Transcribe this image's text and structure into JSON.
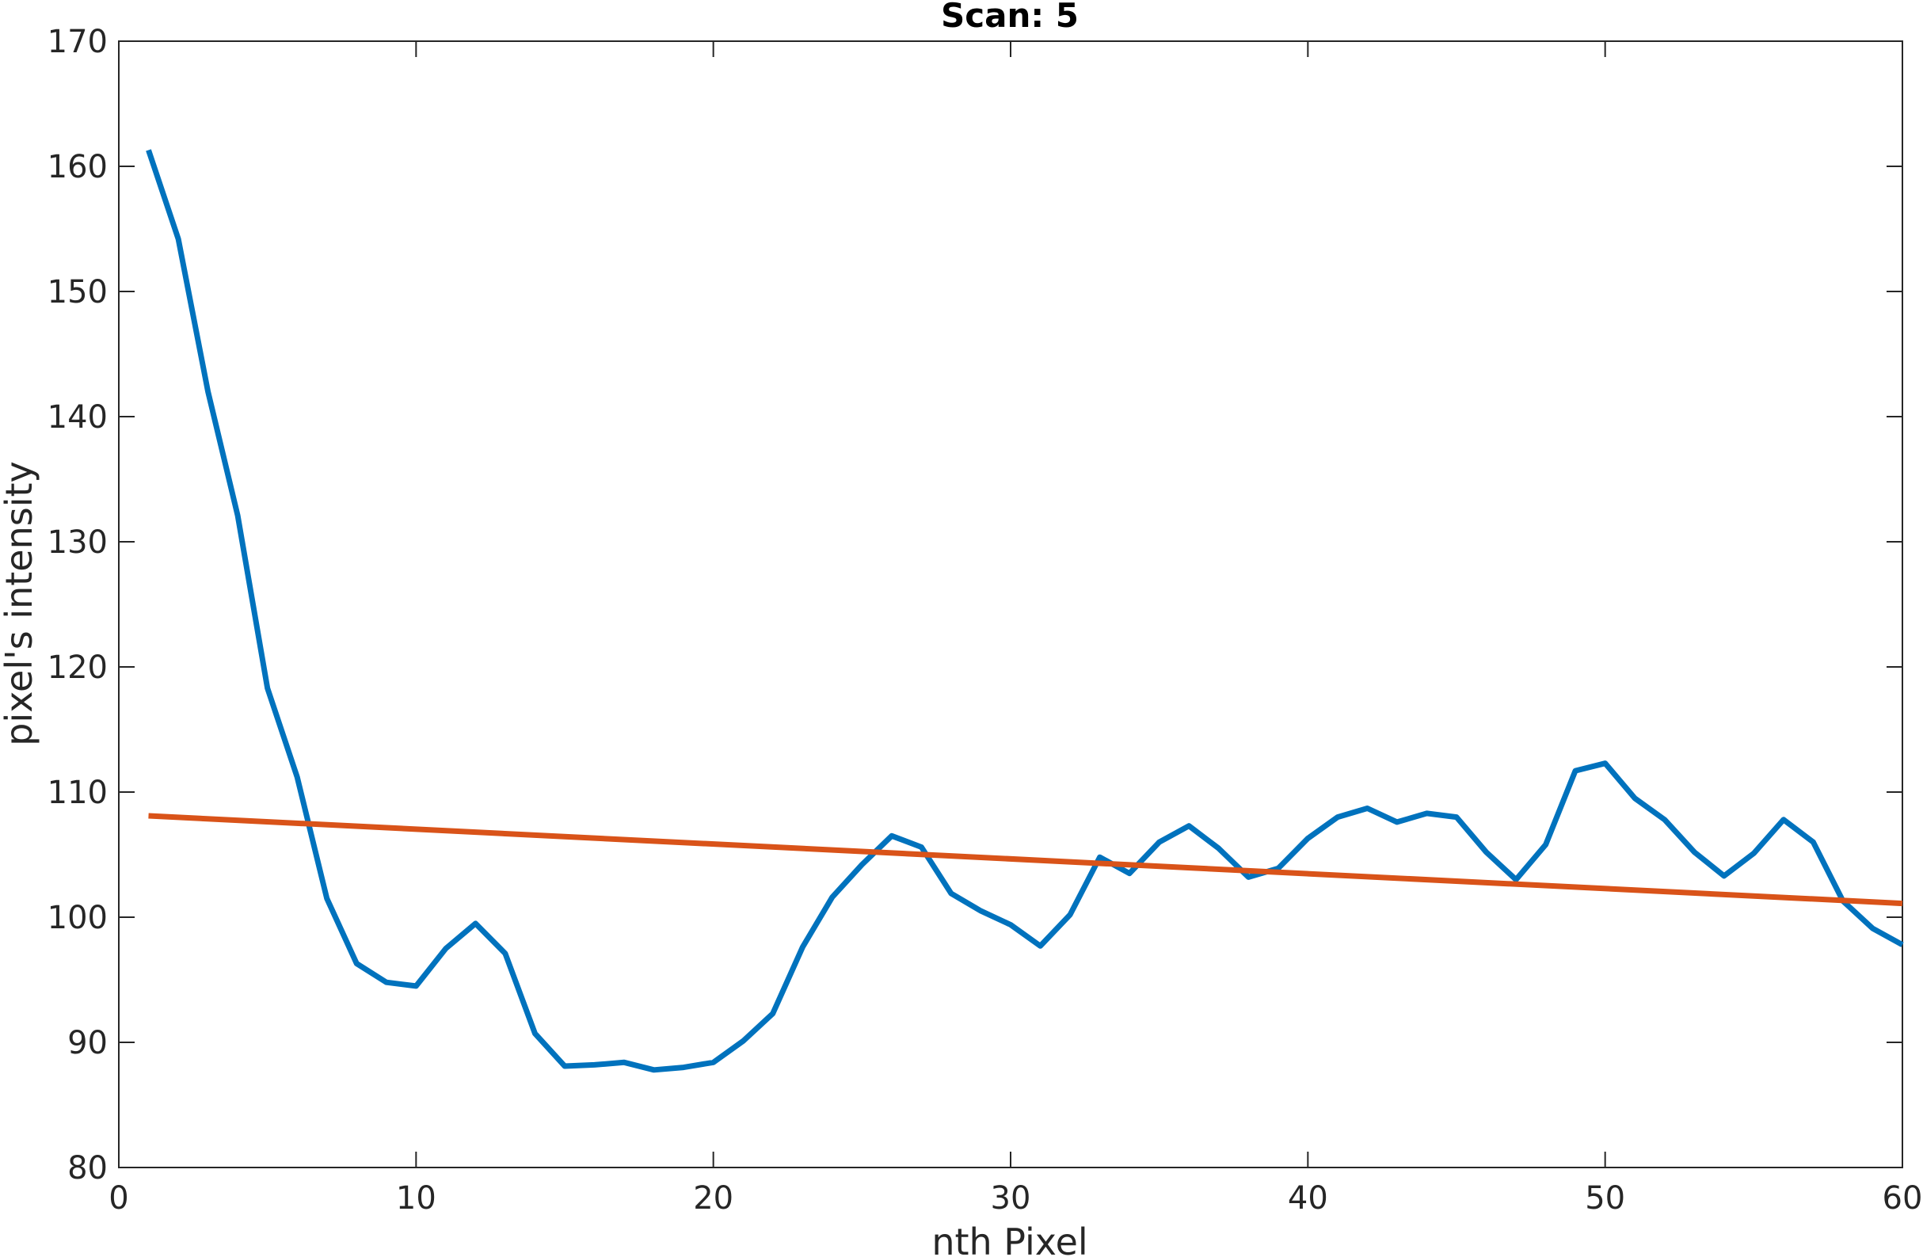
{
  "chart_data": {
    "type": "line",
    "title": "Scan: 5",
    "xlabel": "nth Pixel",
    "ylabel": "pixel's intensity",
    "xlim": [
      0,
      60
    ],
    "ylim": [
      80,
      170
    ],
    "xticks": [
      0,
      10,
      20,
      30,
      40,
      50,
      60
    ],
    "yticks": [
      80,
      90,
      100,
      110,
      120,
      130,
      140,
      150,
      160,
      170
    ],
    "grid": false,
    "box": true,
    "series": [
      {
        "color": "#0072bd",
        "x": [
          1,
          2,
          3,
          4,
          5,
          6,
          7,
          8,
          9,
          10,
          11,
          12,
          13,
          14,
          15,
          16,
          17,
          18,
          19,
          20,
          21,
          22,
          23,
          24,
          25,
          26,
          27,
          28,
          29,
          30,
          31,
          32,
          33,
          34,
          35,
          36,
          37,
          38,
          39,
          40,
          41,
          42,
          43,
          44,
          45,
          46,
          47,
          48,
          49,
          50,
          51,
          52,
          53,
          54,
          55,
          56,
          57,
          58,
          59,
          60
        ],
        "y": [
          161.3,
          154.2,
          142,
          132.1,
          118.3,
          111.2,
          101.5,
          96.3,
          94.8,
          94.5,
          97.5,
          99.5,
          97.1,
          90.7,
          88.1,
          88.2,
          88.4,
          87.8,
          88,
          88.4,
          90.1,
          92.3,
          97.6,
          101.6,
          104.2,
          106.5,
          105.6,
          101.9,
          100.5,
          99.4,
          97.7,
          100.2,
          104.8,
          103.5,
          106,
          107.3,
          105.5,
          103.2,
          103.9,
          106.3,
          108,
          108.7,
          107.6,
          108.3,
          108,
          105.2,
          103,
          105.8,
          111.7,
          112.3,
          109.5,
          107.8,
          105.2,
          103.3,
          105.1,
          107.8,
          106,
          101.3,
          99.1,
          97.8
        ]
      },
      {
        "color": "#d95319",
        "x": [
          1,
          60
        ],
        "y": [
          108.1,
          101.1
        ]
      }
    ]
  }
}
